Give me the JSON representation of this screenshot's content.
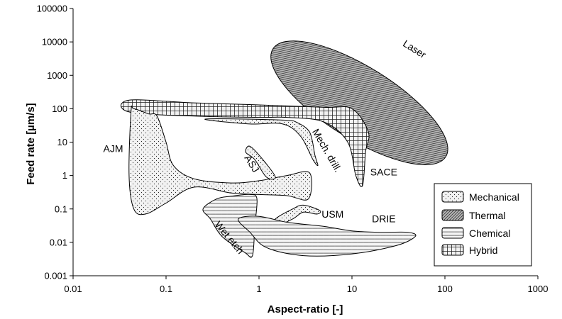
{
  "chart_data": {
    "type": "area",
    "xlabel": "Aspect-ratio [-]",
    "ylabel": "Feed rate [µm/s]",
    "xscale": "log",
    "yscale": "log",
    "xlim": [
      0.01,
      1000
    ],
    "ylim": [
      0.001,
      100000
    ],
    "x_ticks": [
      "0.01",
      "0.1",
      "1",
      "10",
      "100",
      "1000"
    ],
    "y_ticks": [
      "0.001",
      "0.01",
      "0.1",
      "1",
      "10",
      "100",
      "1000",
      "10000",
      "100000"
    ],
    "grid": false,
    "legend": {
      "position": "bottom-right",
      "entries": [
        "Mechanical",
        "Thermal",
        "Chemical",
        "Hybrid"
      ]
    },
    "regions": [
      {
        "label": "Laser",
        "category": "Thermal",
        "shape": "ellipse",
        "center": [
          12,
          150
        ],
        "extent_x": [
          1.8,
          280
        ],
        "extent_y": [
          2.5,
          20000
        ]
      },
      {
        "label": "SACE",
        "category": "Hybrid",
        "points": [
          [
            0.04,
            180
          ],
          [
            0.2,
            150
          ],
          [
            1,
            130
          ],
          [
            5,
            110
          ],
          [
            10,
            100
          ],
          [
            15,
            20
          ],
          [
            14,
            5
          ],
          [
            13,
            0.5
          ],
          [
            11,
            1
          ],
          [
            9,
            10
          ],
          [
            5,
            40
          ],
          [
            2,
            55
          ],
          [
            1,
            55
          ],
          [
            0.2,
            60
          ],
          [
            0.04,
            80
          ]
        ]
      },
      {
        "label": "Mech. drill.",
        "category": "Mechanical",
        "points": [
          [
            0.3,
            50
          ],
          [
            1,
            48
          ],
          [
            2,
            45
          ],
          [
            2.5,
            40
          ],
          [
            3.5,
            20
          ],
          [
            4,
            4
          ],
          [
            4.3,
            2
          ],
          [
            3.8,
            3
          ],
          [
            2.8,
            15
          ],
          [
            1.8,
            35
          ],
          [
            0.8,
            35
          ],
          [
            0.3,
            45
          ]
        ]
      },
      {
        "label": "AJM",
        "category": "Mechanical",
        "points": [
          [
            0.042,
            80
          ],
          [
            0.045,
            100
          ],
          [
            0.065,
            70
          ],
          [
            0.08,
            60
          ],
          [
            0.1,
            10
          ],
          [
            0.12,
            2
          ],
          [
            0.2,
            0.8
          ],
          [
            0.5,
            0.6
          ],
          [
            1,
            0.7
          ],
          [
            2,
            1
          ],
          [
            3.5,
            1.2
          ],
          [
            3.4,
            0.2
          ],
          [
            2,
            0.25
          ],
          [
            1,
            0.27
          ],
          [
            0.5,
            0.3
          ],
          [
            0.2,
            0.45
          ],
          [
            0.1,
            0.15
          ],
          [
            0.06,
            0.07
          ],
          [
            0.045,
            0.1
          ],
          [
            0.04,
            1
          ]
        ]
      },
      {
        "label": "ASJ",
        "category": "Mechanical",
        "points": [
          [
            0.72,
            5
          ],
          [
            0.8,
            7.5
          ],
          [
            1.1,
            3
          ],
          [
            1.5,
            0.9
          ],
          [
            1.2,
            0.9
          ],
          [
            0.9,
            3
          ]
        ]
      },
      {
        "label": "USM",
        "category": "Mechanical",
        "points": [
          [
            1.5,
            0.05
          ],
          [
            2.3,
            0.1
          ],
          [
            3,
            0.13
          ],
          [
            4.5,
            0.09
          ],
          [
            4.2,
            0.07
          ],
          [
            3,
            0.08
          ],
          [
            2.3,
            0.05
          ],
          [
            1.5,
            0.03
          ]
        ]
      },
      {
        "label": "Wet etch",
        "category": "Chemical",
        "points": [
          [
            0.25,
            0.1
          ],
          [
            0.35,
            0.2
          ],
          [
            0.5,
            0.24
          ],
          [
            0.8,
            0.27
          ],
          [
            0.95,
            0.2
          ],
          [
            0.9,
            0.03
          ],
          [
            0.85,
            0.004
          ],
          [
            0.7,
            0.005
          ],
          [
            0.4,
            0.015
          ],
          [
            0.3,
            0.05
          ]
        ]
      },
      {
        "label": "DRIE",
        "category": "Chemical",
        "points": [
          [
            0.6,
            0.05
          ],
          [
            1,
            0.06
          ],
          [
            2,
            0.04
          ],
          [
            5,
            0.03
          ],
          [
            10,
            0.022
          ],
          [
            20,
            0.02
          ],
          [
            40,
            0.02
          ],
          [
            48,
            0.015
          ],
          [
            30,
            0.008
          ],
          [
            10,
            0.0045
          ],
          [
            3,
            0.004
          ],
          [
            1.2,
            0.007
          ],
          [
            0.8,
            0.02
          ]
        ]
      }
    ],
    "region_labels": [
      {
        "text": "Laser",
        "x": 45,
        "y": 5000,
        "rotation": 32
      },
      {
        "text": "SACE",
        "x": 22,
        "y": 1,
        "rotation": 0
      },
      {
        "text": "Mech. drill.",
        "x": 5,
        "y": 5,
        "rotation": 60
      },
      {
        "text": "AJM",
        "x": 0.027,
        "y": 5,
        "rotation": 0
      },
      {
        "text": "ASJ",
        "x": 0.78,
        "y": 2,
        "rotation": 58
      },
      {
        "text": "USM",
        "x": 6.2,
        "y": 0.055,
        "rotation": 0
      },
      {
        "text": "Wet etch",
        "x": 0.45,
        "y": 0.012,
        "rotation": 50
      },
      {
        "text": "DRIE",
        "x": 22,
        "y": 0.04,
        "rotation": 0
      }
    ]
  }
}
